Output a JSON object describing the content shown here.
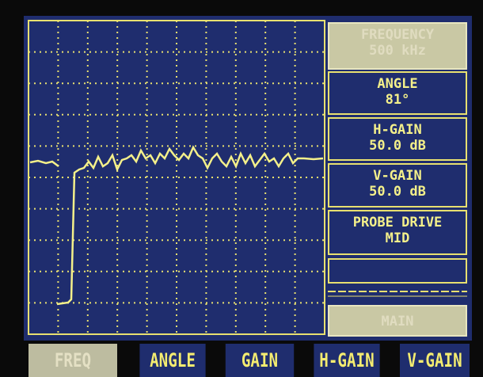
{
  "panel": {
    "items": [
      {
        "label": "FREQUENCY",
        "value": "500 kHz"
      },
      {
        "label": "ANGLE",
        "value": "81°"
      },
      {
        "label": "H-GAIN",
        "value": "50.0 dB"
      },
      {
        "label": "V-GAIN",
        "value": "50.0 dB"
      },
      {
        "label": "PROBE DRIVE",
        "value": "MID"
      }
    ],
    "main": "MAIN"
  },
  "softkeys": [
    "FREQ",
    "ANGLE",
    "GAIN",
    "H-GAIN",
    "V-GAIN"
  ]
}
